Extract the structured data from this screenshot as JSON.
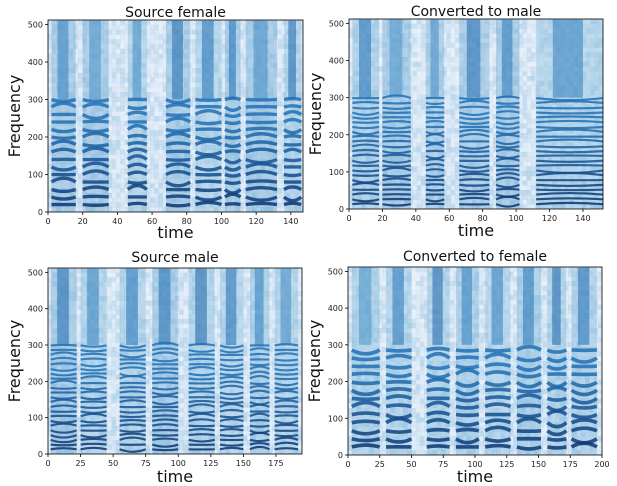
{
  "chart_data": [
    {
      "type": "heatmap",
      "title": "Source female",
      "xlabel": "time",
      "ylabel": "Frequency",
      "xlim": [
        0,
        147
      ],
      "ylim": [
        0,
        512
      ],
      "xticks": [
        0,
        20,
        40,
        60,
        80,
        100,
        120,
        140
      ],
      "yticks": [
        0,
        100,
        200,
        300,
        400,
        500
      ],
      "colormap": "Blues",
      "voiced_segments": [
        [
          2,
          16
        ],
        [
          20,
          35
        ],
        [
          46,
          57
        ],
        [
          68,
          82
        ],
        [
          85,
          100
        ],
        [
          102,
          111
        ],
        [
          114,
          132
        ],
        [
          136,
          146
        ]
      ],
      "f0_spacing": 20,
      "grid": false
    },
    {
      "type": "heatmap",
      "title": "Converted to male",
      "xlabel": "time",
      "ylabel": "Frequency",
      "xlim": [
        0,
        152
      ],
      "ylim": [
        0,
        512
      ],
      "xticks": [
        0,
        20,
        40,
        60,
        80,
        100,
        120,
        140
      ],
      "yticks": [
        0,
        100,
        200,
        300,
        400,
        500
      ],
      "colormap": "Blues",
      "voiced_segments": [
        [
          2,
          18
        ],
        [
          20,
          37
        ],
        [
          46,
          57
        ],
        [
          66,
          84
        ],
        [
          88,
          102
        ],
        [
          112,
          152
        ]
      ],
      "f0_spacing": 13,
      "grid": false
    },
    {
      "type": "heatmap",
      "title": "Source male",
      "xlabel": "time",
      "ylabel": "Frequency",
      "xlim": [
        0,
        195
      ],
      "ylim": [
        0,
        512
      ],
      "xticks": [
        0,
        25,
        50,
        75,
        100,
        125,
        150,
        175
      ],
      "yticks": [
        0,
        100,
        200,
        300,
        400,
        500
      ],
      "colormap": "Blues",
      "voiced_segments": [
        [
          2,
          22
        ],
        [
          25,
          45
        ],
        [
          55,
          75
        ],
        [
          80,
          100
        ],
        [
          108,
          128
        ],
        [
          132,
          150
        ],
        [
          155,
          170
        ],
        [
          174,
          192
        ]
      ],
      "f0_spacing": 13,
      "grid": false
    },
    {
      "type": "heatmap",
      "title": "Converted to female",
      "xlabel": "time",
      "ylabel": "Frequency",
      "xlim": [
        0,
        200
      ],
      "ylim": [
        0,
        512
      ],
      "xticks": [
        0,
        25,
        50,
        75,
        100,
        125,
        150,
        175,
        200
      ],
      "yticks": [
        0,
        100,
        200,
        300,
        400,
        500
      ],
      "colormap": "Blues",
      "voiced_segments": [
        [
          3,
          25
        ],
        [
          30,
          50
        ],
        [
          62,
          80
        ],
        [
          85,
          103
        ],
        [
          108,
          128
        ],
        [
          133,
          152
        ],
        [
          157,
          172
        ],
        [
          176,
          196
        ]
      ],
      "f0_spacing": 22,
      "grid": false
    }
  ]
}
